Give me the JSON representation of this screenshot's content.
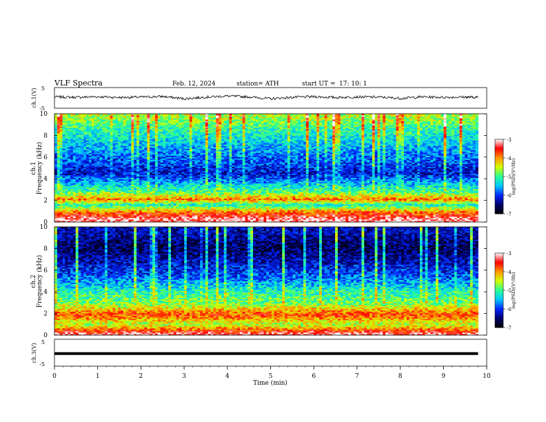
{
  "header": {
    "title": "VLF Spectra",
    "date": "Feb. 12, 2024",
    "station": "station= ATH",
    "start_label": "start  UT  =",
    "start_time": "17: 10: 1"
  },
  "colors": {
    "background": "#ffffff",
    "axis": "#000000",
    "waveform": "#000000",
    "colormap": [
      "#000000",
      "#00006e",
      "#0028ff",
      "#00c8ff",
      "#28ff96",
      "#d2ff00",
      "#ff9600",
      "#ff0000",
      "#ffffff"
    ]
  },
  "chart_data": [
    {
      "id": "ch1_waveform",
      "type": "line",
      "ylabel": "ch.1(V)",
      "ylim": [
        -5,
        5
      ],
      "yticks": [
        "5",
        "-5"
      ],
      "x": [
        0,
        0.5,
        1,
        1.5,
        2,
        2.5,
        3,
        3.5,
        4,
        4.5,
        5,
        5.5,
        6,
        6.5,
        7,
        7.5,
        8,
        8.5,
        9,
        9.5,
        9.8
      ],
      "y": [
        0.5,
        0.3,
        0.6,
        0.2,
        0.4,
        0.7,
        -0.4,
        0.4,
        0.9,
        0.5,
        -0.4,
        0.3,
        0.6,
        0.2,
        0.5,
        0.4,
        -0.2,
        0.5,
        0.3,
        0.4,
        0.3
      ]
    },
    {
      "id": "ch1_spectrogram",
      "type": "heatmap",
      "ylabel": "ch.1\nFrequency  (kHz)",
      "xlim": [
        0,
        10
      ],
      "ylim": [
        0,
        10
      ],
      "yticks": [
        "0",
        "2",
        "4",
        "6",
        "8",
        "10"
      ],
      "colorbar": {
        "label": "log(PSD)(V²/Hz)",
        "range": [
          -7,
          -3
        ],
        "ticks": [
          "-3",
          "-4",
          "-5",
          "-6",
          "-7"
        ]
      },
      "bands": [
        {
          "f_khz": 0.3,
          "level": -3.2
        },
        {
          "f_khz": 0.9,
          "level": -3.8
        },
        {
          "f_khz": 1.6,
          "level": -5.2
        },
        {
          "f_khz": 2.1,
          "level": -3.9
        },
        {
          "f_khz": 2.8,
          "level": -4.9
        },
        {
          "f_khz": 4.5,
          "level": -6.2
        },
        {
          "f_khz": 6.0,
          "level": -5.8
        },
        {
          "f_khz": 8.5,
          "level": -5.1
        },
        {
          "f_khz": 9.7,
          "level": -4.6
        }
      ]
    },
    {
      "id": "ch2_spectrogram",
      "type": "heatmap",
      "ylabel": "ch.2\nFrequency  (kHz)",
      "xlim": [
        0,
        10
      ],
      "ylim": [
        0,
        10
      ],
      "yticks": [
        "0",
        "2",
        "4",
        "6",
        "8",
        "10"
      ],
      "colorbar": {
        "label": "log(PSD)(V²/Hz)",
        "range": [
          -7,
          -3
        ],
        "ticks": [
          "-3",
          "-4",
          "-5",
          "-6",
          "-7"
        ]
      },
      "bands": [
        {
          "f_khz": 0.2,
          "level": -3.3
        },
        {
          "f_khz": 1.0,
          "level": -4.6
        },
        {
          "f_khz": 1.9,
          "level": -3.7
        },
        {
          "f_khz": 3.0,
          "level": -4.8
        },
        {
          "f_khz": 4.0,
          "level": -5.1
        },
        {
          "f_khz": 5.5,
          "level": -5.9
        },
        {
          "f_khz": 8.0,
          "level": -6.6
        },
        {
          "f_khz": 9.5,
          "level": -6.3
        }
      ]
    },
    {
      "id": "ch3_waveform",
      "type": "line",
      "ylabel": "ch.3(V)",
      "ylim": [
        -5,
        5
      ],
      "yticks": [
        "5",
        "-5"
      ],
      "x": [
        0,
        9.8
      ],
      "y": [
        -0.3,
        -0.3
      ]
    }
  ],
  "xaxis": {
    "label": "Time  (min)",
    "xlim": [
      0,
      10
    ],
    "ticks": [
      "0",
      "1",
      "2",
      "3",
      "4",
      "5",
      "6",
      "7",
      "8",
      "9",
      "10"
    ]
  }
}
